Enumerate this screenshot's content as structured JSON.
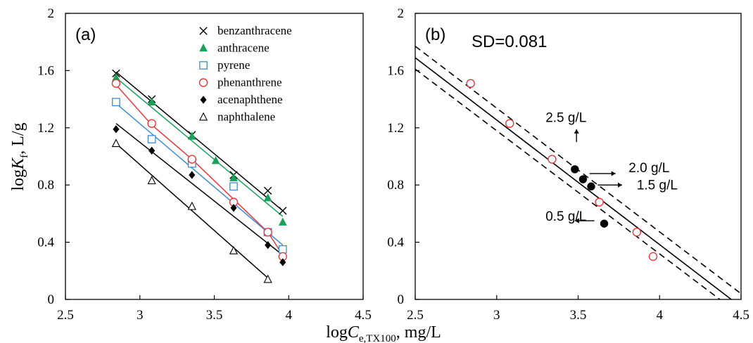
{
  "figure": {
    "ylabel_prefix": "log",
    "ylabel_italic": "K",
    "ylabel_sub": "f",
    "ylabel_suffix": ", L/g",
    "xlabel_prefix": "log",
    "xlabel_italic": "C",
    "xlabel_sub": "e,TX100",
    "xlabel_suffix": ", mg/L"
  },
  "chart_data": [
    {
      "type": "scatter",
      "panel_label": "(a)",
      "xlim": [
        2.5,
        4.5
      ],
      "ylim": [
        0,
        2
      ],
      "x_ticks": [
        "2.5",
        "3",
        "3.5",
        "4",
        "4.5"
      ],
      "y_ticks": [
        "0",
        "0.4",
        "0.8",
        "1.2",
        "1.6",
        "2"
      ],
      "legend_position": "top-right",
      "series": [
        {
          "name": "benzanthracene",
          "marker": "x",
          "color": "#000000",
          "line_color": "#000000",
          "points": [
            [
              2.84,
              1.58
            ],
            [
              3.08,
              1.4
            ],
            [
              3.35,
              1.15
            ],
            [
              3.63,
              0.87
            ],
            [
              3.86,
              0.76
            ],
            [
              3.96,
              0.62
            ]
          ],
          "fit": [
            [
              2.84,
              1.59
            ],
            [
              3.96,
              0.62
            ]
          ]
        },
        {
          "name": "anthracene",
          "marker": "triangle-filled",
          "color": "#1aa05a",
          "line_color": "#1aa05a",
          "points": [
            [
              2.84,
              1.55
            ],
            [
              3.08,
              1.38
            ],
            [
              3.35,
              1.14
            ],
            [
              3.51,
              0.97
            ],
            [
              3.63,
              0.85
            ],
            [
              3.86,
              0.71
            ],
            [
              3.96,
              0.54
            ]
          ],
          "fit": [
            [
              2.84,
              1.55
            ],
            [
              3.96,
              0.58
            ]
          ]
        },
        {
          "name": "pyrene",
          "marker": "square-open",
          "color": "#3a8dd0",
          "line_color": "#3a8dd0",
          "points": [
            [
              2.84,
              1.38
            ],
            [
              3.08,
              1.12
            ],
            [
              3.35,
              0.95
            ],
            [
              3.63,
              0.79
            ],
            [
              3.86,
              0.47
            ],
            [
              3.96,
              0.35
            ]
          ],
          "fit": [
            [
              2.84,
              1.37
            ],
            [
              3.96,
              0.38
            ]
          ]
        },
        {
          "name": "phenanthrene",
          "marker": "circle-open",
          "color": "#e8383d",
          "line_color": "#e8383d",
          "points": [
            [
              2.84,
              1.51
            ],
            [
              3.08,
              1.23
            ],
            [
              3.35,
              0.98
            ],
            [
              3.63,
              0.68
            ],
            [
              3.86,
              0.47
            ],
            [
              3.96,
              0.3
            ]
          ],
          "fit": [
            [
              2.84,
              1.5
            ],
            [
              3.08,
              1.22
            ],
            [
              3.35,
              0.98
            ],
            [
              3.63,
              0.7
            ],
            [
              3.86,
              0.47
            ],
            [
              3.96,
              0.31
            ]
          ]
        },
        {
          "name": "acenaphthene",
          "marker": "diamond-filled",
          "color": "#000000",
          "line_color": "#000000",
          "points": [
            [
              2.84,
              1.19
            ],
            [
              3.08,
              1.04
            ],
            [
              3.35,
              0.87
            ],
            [
              3.63,
              0.64
            ],
            [
              3.86,
              0.38
            ],
            [
              3.96,
              0.26
            ]
          ],
          "fit": [
            [
              2.84,
              1.23
            ],
            [
              3.96,
              0.31
            ]
          ]
        },
        {
          "name": "naphthalene",
          "marker": "triangle-open",
          "color": "#000000",
          "line_color": "#000000",
          "points": [
            [
              2.84,
              1.09
            ],
            [
              3.08,
              0.83
            ],
            [
              3.35,
              0.65
            ],
            [
              3.63,
              0.34
            ],
            [
              3.86,
              0.14
            ]
          ],
          "fit": [
            [
              2.84,
              1.09
            ],
            [
              3.86,
              0.15
            ]
          ]
        }
      ]
    },
    {
      "type": "scatter",
      "panel_label": "(b)",
      "sd_label": "SD=0.081",
      "xlim": [
        2.5,
        4.5
      ],
      "ylim": [
        0,
        2
      ],
      "x_ticks": [
        "2.5",
        "3",
        "3.5",
        "4",
        "4.5"
      ],
      "y_ticks": [
        "0",
        "0.4",
        "0.8",
        "1.2",
        "1.6",
        "2"
      ],
      "fit_lines": [
        {
          "style": "solid",
          "points": [
            [
              2.5,
              1.69
            ],
            [
              4.44,
              0.0
            ]
          ]
        },
        {
          "style": "dashed",
          "points": [
            [
              2.5,
              1.77
            ],
            [
              4.5,
              0.04
            ]
          ]
        },
        {
          "style": "dashed",
          "points": [
            [
              2.5,
              1.61
            ],
            [
              4.37,
              0.0
            ]
          ]
        }
      ],
      "series": [
        {
          "marker": "circle-open",
          "color": "#e8383d",
          "points": [
            [
              2.84,
              1.51
            ],
            [
              3.08,
              1.23
            ],
            [
              3.34,
              0.98
            ],
            [
              3.63,
              0.68
            ],
            [
              3.86,
              0.47
            ],
            [
              3.96,
              0.3
            ]
          ]
        },
        {
          "marker": "circle-filled",
          "color": "#000000",
          "points": [
            [
              3.48,
              0.91
            ],
            [
              3.53,
              0.84
            ],
            [
              3.58,
              0.79
            ],
            [
              3.66,
              0.53
            ]
          ]
        }
      ],
      "annotations": [
        {
          "text": "2.5 g/L",
          "point": [
            3.48,
            0.91
          ],
          "arrow": "up",
          "text_pos": [
            3.3,
            1.24
          ],
          "arrow_from": [
            3.49,
            1.1
          ],
          "arrow_to": [
            3.49,
            1.19
          ]
        },
        {
          "text": "2.0 g/L",
          "point": [
            3.53,
            0.84
          ],
          "arrow": "right",
          "text_pos": [
            3.81,
            0.89
          ],
          "arrow_from": [
            3.57,
            0.88
          ],
          "arrow_to": [
            3.73,
            0.88
          ]
        },
        {
          "text": "1.5 g/L",
          "point": [
            3.58,
            0.79
          ],
          "arrow": "right",
          "text_pos": [
            3.86,
            0.77
          ],
          "arrow_from": [
            3.62,
            0.8
          ],
          "arrow_to": [
            3.77,
            0.8
          ]
        },
        {
          "text": "0.5 g/L",
          "point": [
            3.66,
            0.53
          ],
          "arrow": "left",
          "text_pos": [
            3.3,
            0.55
          ],
          "arrow_from": [
            3.6,
            0.55
          ],
          "arrow_to": [
            3.48,
            0.55
          ]
        }
      ]
    }
  ]
}
